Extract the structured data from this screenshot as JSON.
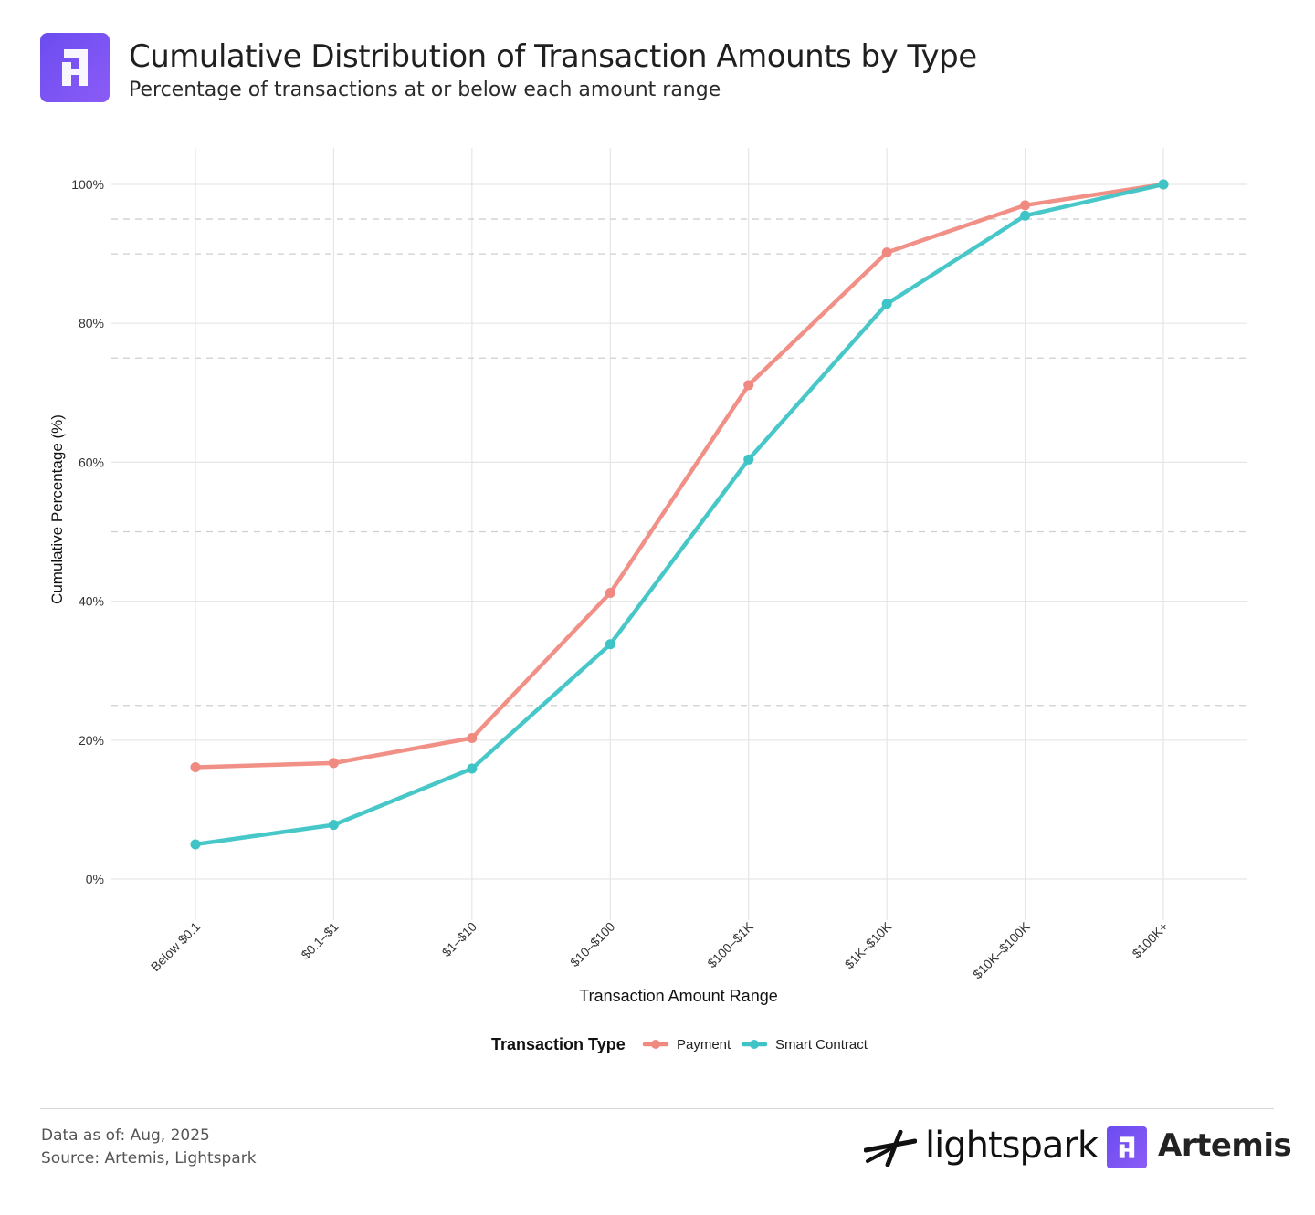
{
  "header": {
    "title": "Cumulative Distribution of Transaction Amounts by Type",
    "subtitle": "Percentage of transactions at or below each amount range",
    "logo_icon": "artemis-logo-icon"
  },
  "chart_data": {
    "type": "line",
    "categories": [
      "Below $0.1",
      "$0.1–$1",
      "$1–$10",
      "$10–$100",
      "$100–$1K",
      "$1K–$10K",
      "$10K–$100K",
      "$100K+"
    ],
    "series": [
      {
        "name": "Payment",
        "color": "#f08a80",
        "values": [
          16.1,
          16.7,
          20.3,
          41.2,
          71.1,
          90.2,
          97.0,
          100
        ]
      },
      {
        "name": "Smart Contract",
        "color": "#3ec4c6",
        "values": [
          5.0,
          7.8,
          15.9,
          33.8,
          60.4,
          82.8,
          95.5,
          100
        ]
      }
    ],
    "xlabel": "Transaction Amount Range",
    "ylabel": "Cumulative Percentage (%)",
    "ylim": [
      0,
      100
    ],
    "yticks": [
      0,
      20,
      40,
      60,
      80,
      100
    ],
    "ytick_labels": [
      "0%",
      "20%",
      "40%",
      "60%",
      "80%",
      "100%"
    ],
    "reference_lines": [
      25,
      50,
      75,
      90,
      95
    ],
    "grid": true,
    "legend": {
      "title": "Transaction Type",
      "placement": "bottom"
    }
  },
  "footer": {
    "data_as_of": "Data as of: Aug, 2025",
    "source": "Source: Artemis, Lightspark",
    "brand_lightspark": "lightspark",
    "brand_artemis": "Artemis"
  }
}
